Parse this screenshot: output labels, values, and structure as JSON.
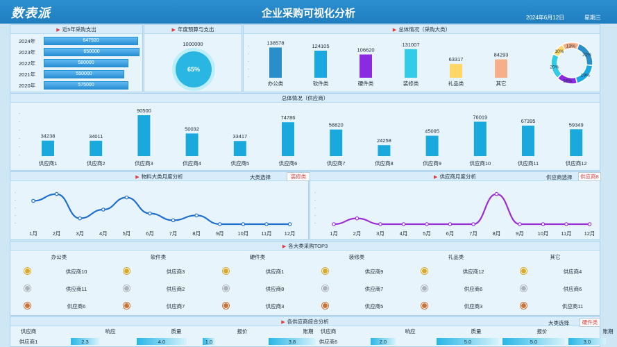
{
  "header": {
    "logo": "数表派",
    "title": "企业采购可视化分析",
    "date": "2024年6月12日",
    "weekday": "星期三"
  },
  "colors": {
    "accent": "#1f7ec0",
    "bar": "#19a9dd",
    "line_blue": "#1f6fd0",
    "line_purple": "#9b2fd6",
    "highlight": "#e23b3b"
  },
  "spend5": {
    "title": "近5年采购支出",
    "rows": [
      {
        "year": "2024年",
        "value": "647920",
        "pct": 0.96
      },
      {
        "year": "2023年",
        "value": "650000",
        "pct": 0.97
      },
      {
        "year": "2022年",
        "value": "580000",
        "pct": 0.86
      },
      {
        "year": "2021年",
        "value": "550000",
        "pct": 0.82
      },
      {
        "year": "2020年",
        "value": "575000",
        "pct": 0.86
      }
    ]
  },
  "budget": {
    "title": "年度预算与支出",
    "budget": "1000000",
    "pct": "65%"
  },
  "category": {
    "title": "总体情况（采购大类）",
    "items": [
      {
        "name": "办公类",
        "value": 138578,
        "label": "138578",
        "color": "#2a8fc8"
      },
      {
        "name": "软件类",
        "value": 124105,
        "label": "124105",
        "color": "#1aa8e3"
      },
      {
        "name": "硬件类",
        "value": 106620,
        "label": "106620",
        "color": "#8a2be2"
      },
      {
        "name": "装修类",
        "value": 131007,
        "label": "131007",
        "color": "#33cce8"
      },
      {
        "name": "礼品类",
        "value": 63317,
        "label": "63317",
        "color": "#ffd766"
      },
      {
        "name": "其它",
        "value": 84293,
        "label": "84293",
        "color": "#f5b08a"
      }
    ],
    "donut": [
      {
        "label": "21%",
        "value": 21
      },
      {
        "label": "19%",
        "value": 19
      },
      {
        "label": "16%",
        "value": 16
      },
      {
        "label": "20%",
        "value": 20
      },
      {
        "label": "10%",
        "value": 10
      },
      {
        "label": "13%",
        "value": 13
      }
    ]
  },
  "supplier": {
    "title": "总体情况（供应商）",
    "items": [
      {
        "name": "供应商1",
        "value": 34238
      },
      {
        "name": "供应商2",
        "value": 34011
      },
      {
        "name": "供应商3",
        "value": 90500
      },
      {
        "name": "供应商4",
        "value": 50032
      },
      {
        "name": "供应商5",
        "value": 33417
      },
      {
        "name": "供应商6",
        "value": 74786
      },
      {
        "name": "供应商7",
        "value": 58820
      },
      {
        "name": "供应商8",
        "value": 24258
      },
      {
        "name": "供应商9",
        "value": 45095
      },
      {
        "name": "供应商10",
        "value": 76019
      },
      {
        "name": "供应商11",
        "value": 67395
      },
      {
        "name": "供应商12",
        "value": 59349
      }
    ]
  },
  "monthlyCat": {
    "title": "物料大类月度分析",
    "selLabel": "大类选择",
    "selValue": "装修类",
    "months": [
      "1月",
      "2月",
      "3月",
      "4月",
      "5月",
      "6月",
      "7月",
      "8月",
      "9月",
      "10月",
      "11月",
      "12月"
    ],
    "values": [
      48,
      62,
      12,
      30,
      55,
      22,
      8,
      18,
      0,
      0,
      0,
      0
    ]
  },
  "monthlySup": {
    "title": "供应商月度分析",
    "selLabel": "供应商选择",
    "selValue": "供应商8",
    "months": [
      "1月",
      "2月",
      "3月",
      "4月",
      "5月",
      "6月",
      "7月",
      "8月",
      "9月",
      "10月",
      "11月",
      "12月"
    ],
    "values": [
      0,
      12,
      0,
      0,
      0,
      0,
      0,
      62,
      0,
      0,
      0,
      0
    ]
  },
  "top3": {
    "title": "各大类采购TOP3",
    "cols": [
      {
        "name": "办公类",
        "items": [
          "供应商10",
          "供应商11",
          "供应商6"
        ]
      },
      {
        "name": "软件类",
        "items": [
          "供应商3",
          "供应商2",
          "供应商7"
        ]
      },
      {
        "name": "硬件类",
        "items": [
          "供应商1",
          "供应商8",
          "供应商3"
        ]
      },
      {
        "name": "装修类",
        "items": [
          "供应商9",
          "供应商7",
          "供应商5"
        ]
      },
      {
        "name": "礼品类",
        "items": [
          "供应商12",
          "供应商6",
          "供应商3"
        ]
      },
      {
        "name": "其它",
        "items": [
          "供应商4",
          "供应商6",
          "供应商11"
        ]
      }
    ]
  },
  "rating": {
    "title": "各供应商综合分析",
    "selLabel": "大类选择",
    "selValue": "硬件类",
    "headers": [
      "供应商",
      "响应",
      "质量",
      "报价",
      "账期"
    ],
    "left": {
      "name": "供应商1",
      "vals": [
        "2.3",
        "4.0",
        "1.0",
        "3.8"
      ],
      "pct": [
        0.23,
        0.4,
        0.1,
        0.38
      ]
    },
    "right": {
      "name": "供应商6",
      "vals": [
        "2.0",
        "5.0",
        "5.0",
        "3.0"
      ],
      "pct": [
        0.2,
        0.5,
        0.5,
        0.3
      ]
    }
  }
}
